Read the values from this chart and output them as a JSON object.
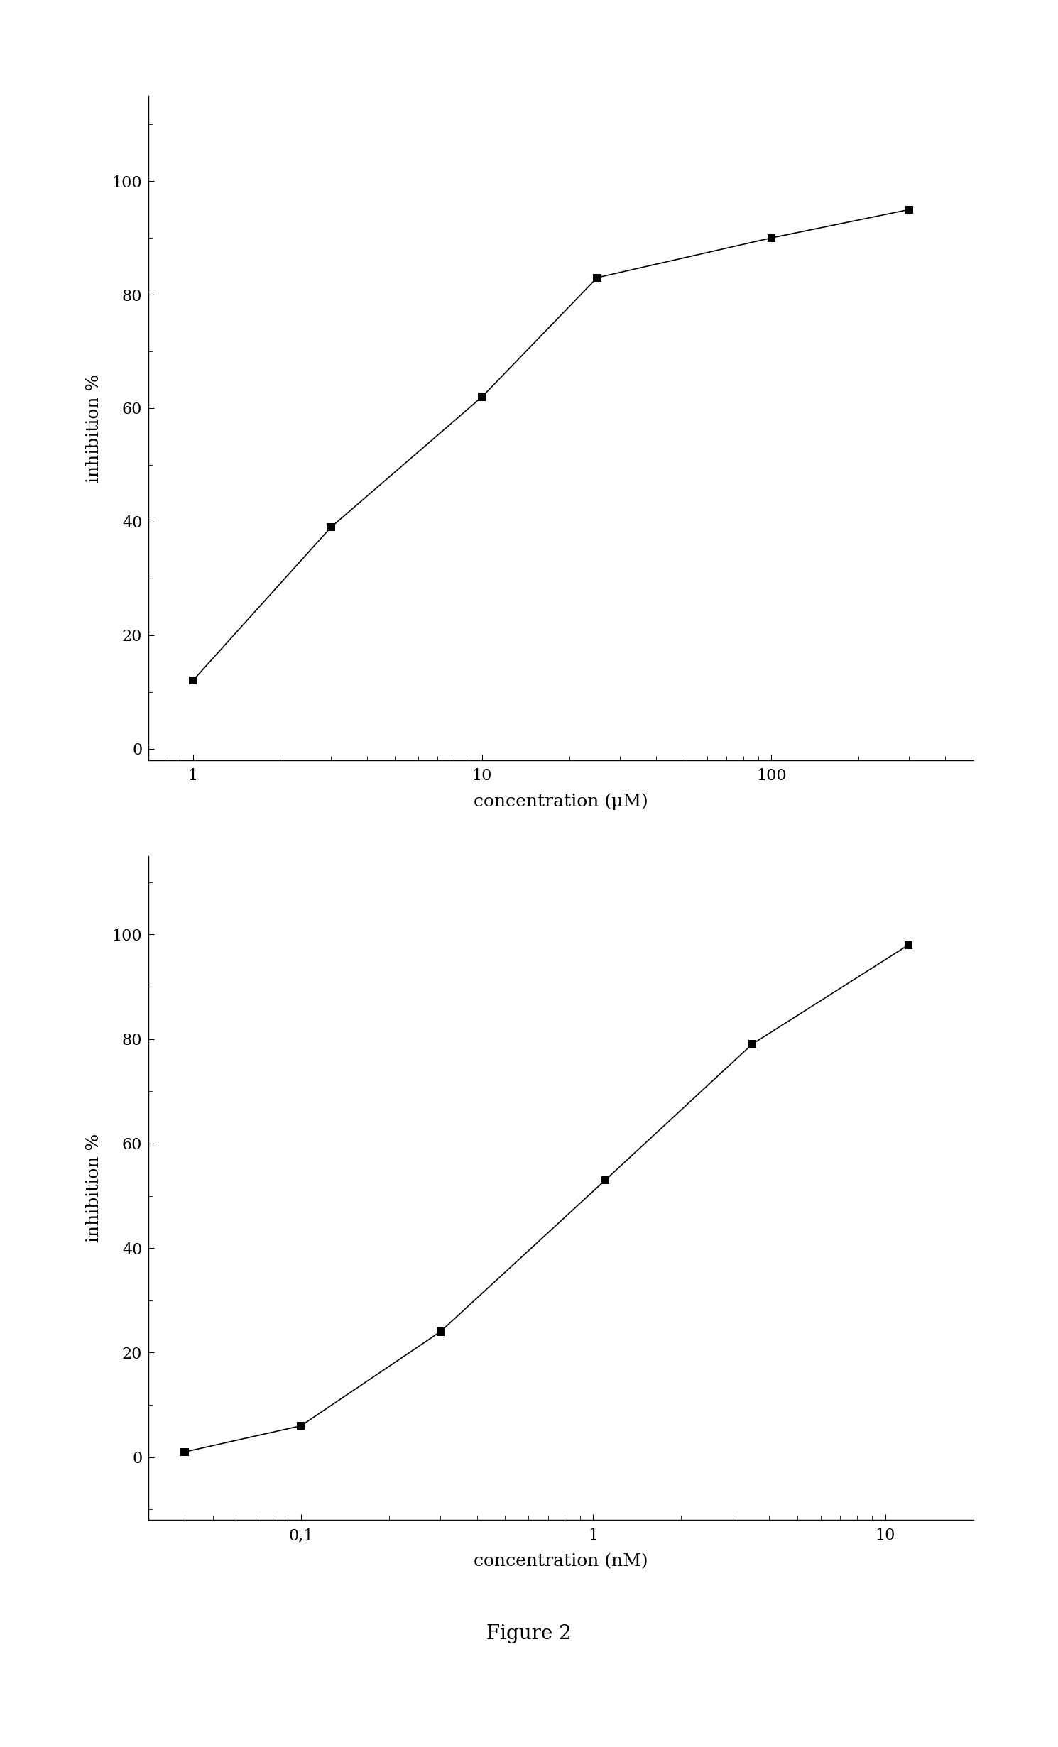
{
  "plot1": {
    "data_x": [
      1.0,
      3.0,
      10.0,
      25.0,
      100.0,
      300.0
    ],
    "data_y": [
      12.0,
      39.0,
      62.0,
      83.0,
      90.0,
      95.0
    ],
    "xlim": [
      0.7,
      500
    ],
    "ylim": [
      -2,
      115
    ],
    "xlabel": "concentration (μM)",
    "ylabel": "inhibition %",
    "yticks": [
      0,
      20,
      40,
      60,
      80,
      100
    ],
    "xticks": [
      1,
      10,
      100
    ],
    "xticklabels": [
      "1",
      "10",
      "100"
    ]
  },
  "plot2": {
    "data_x": [
      0.04,
      0.1,
      0.3,
      1.1,
      3.5,
      12.0
    ],
    "data_y": [
      1.0,
      6.0,
      24.0,
      53.0,
      79.0,
      98.0
    ],
    "xlim": [
      0.03,
      20
    ],
    "ylim": [
      -12,
      115
    ],
    "xlabel": "concentration (nM)",
    "ylabel": "inhibition %",
    "yticks": [
      0,
      20,
      40,
      60,
      80,
      100
    ],
    "xticks": [
      0.1,
      1,
      10
    ],
    "xticklabels": [
      "0,1",
      "1",
      "10"
    ]
  },
  "figure_label": "Figure 2",
  "background_color": "#ffffff",
  "line_color": "#000000",
  "marker_color": "#000000",
  "marker_size": 8,
  "line_width": 1.2,
  "font_family": "serif",
  "label_fontsize": 18,
  "tick_fontsize": 16,
  "figure_label_fontsize": 20
}
